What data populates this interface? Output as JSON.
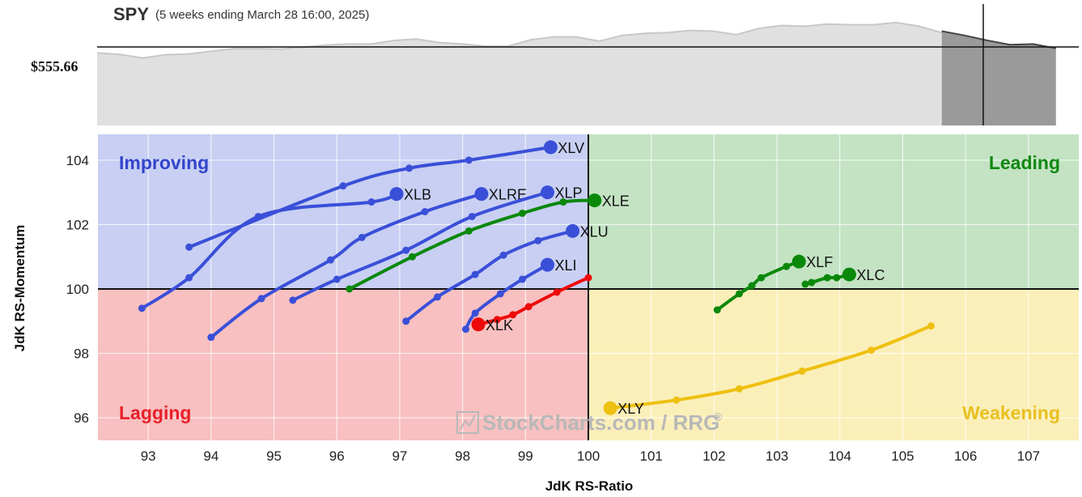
{
  "spy_panel": {
    "symbol": "SPY",
    "period": "(5 weeks ending March 28 16:00, 2025)",
    "price_label": "$555.66",
    "price_values": [
      101.5,
      99.5,
      94.5,
      99,
      100,
      104,
      107.5,
      107.5,
      107,
      109.5,
      112.5,
      114,
      114,
      119,
      121,
      116,
      114,
      111,
      111,
      120,
      124,
      124,
      118,
      126,
      129,
      130,
      133,
      132,
      127,
      136,
      140,
      139,
      142,
      141,
      141,
      144,
      139,
      130
    ],
    "price_colors": {
      "fill": "#e0e0e0",
      "line": "#c8c8c8"
    },
    "forecast_values": [
      132,
      126,
      119,
      113,
      114,
      108
    ],
    "forecast_colors": {
      "fill": "#9a9a9a",
      "line": "#444444"
    },
    "reference_value": 110
  },
  "chart_data": {
    "type": "scatter",
    "xlabel": "JdK RS-Ratio",
    "ylabel": "JdK RS-Momentum",
    "xlim": [
      92.2,
      107.8
    ],
    "ylim": [
      95.3,
      104.8
    ],
    "x_ticks": [
      "93",
      "94",
      "95",
      "96",
      "97",
      "98",
      "99",
      "100",
      "101",
      "102",
      "103",
      "104",
      "105",
      "106",
      "107"
    ],
    "y_ticks": [
      "96",
      "98",
      "100",
      "102",
      "104"
    ],
    "center": [
      100,
      100
    ],
    "quadrants": [
      {
        "name": "Improving",
        "color": "#3344cc",
        "fill": "#c8cff3",
        "position": "top-left"
      },
      {
        "name": "Leading",
        "color": "#118811",
        "fill": "#c3e3c3",
        "position": "top-right"
      },
      {
        "name": "Weakening",
        "color": "#e8c020",
        "fill": "#fbefb9",
        "position": "bottom-right"
      },
      {
        "name": "Lagging",
        "color": "#e8202a",
        "fill": "#f8c0c0",
        "position": "bottom-left"
      }
    ],
    "series": [
      {
        "name": "XLV",
        "color": "#3a4fd8",
        "points": [
          [
            93.65,
            101.3
          ],
          [
            96.1,
            103.2
          ],
          [
            97.15,
            103.75
          ],
          [
            98.1,
            104.0
          ],
          [
            99.4,
            104.4
          ]
        ]
      },
      {
        "name": "XLB",
        "color": "#3a4fd8",
        "points": [
          [
            92.9,
            99.4
          ],
          [
            93.65,
            100.35
          ],
          [
            94.75,
            102.25
          ],
          [
            96.55,
            102.7
          ],
          [
            96.95,
            102.95
          ]
        ]
      },
      {
        "name": "XLRE",
        "color": "#3a4fd8",
        "points": [
          [
            94.0,
            98.5
          ],
          [
            94.8,
            99.7
          ],
          [
            95.9,
            100.9
          ],
          [
            96.4,
            101.6
          ],
          [
            97.4,
            102.4
          ],
          [
            98.3,
            102.95
          ]
        ]
      },
      {
        "name": "XLP",
        "color": "#3a4fd8",
        "points": [
          [
            95.3,
            99.65
          ],
          [
            96.0,
            100.3
          ],
          [
            97.1,
            101.2
          ],
          [
            98.15,
            102.25
          ],
          [
            99.35,
            103.0
          ]
        ]
      },
      {
        "name": "XLU",
        "color": "#3a4fd8",
        "points": [
          [
            97.1,
            99.0
          ],
          [
            97.6,
            99.75
          ],
          [
            98.2,
            100.45
          ],
          [
            98.65,
            101.05
          ],
          [
            99.2,
            101.5
          ],
          [
            99.75,
            101.8
          ]
        ]
      },
      {
        "name": "XLI",
        "color": "#3a4fd8",
        "points": [
          [
            98.05,
            98.75
          ],
          [
            98.2,
            99.25
          ],
          [
            98.6,
            99.85
          ],
          [
            98.95,
            100.3
          ],
          [
            99.35,
            100.75
          ]
        ]
      },
      {
        "name": "XLE",
        "color": "#0a880a",
        "points": [
          [
            96.2,
            100.0
          ],
          [
            97.2,
            101.0
          ],
          [
            98.1,
            101.8
          ],
          [
            98.95,
            102.35
          ],
          [
            99.6,
            102.7
          ],
          [
            100.1,
            102.75
          ]
        ]
      },
      {
        "name": "XLK",
        "color": "#ee0a0a",
        "points": [
          [
            100.0,
            100.35
          ],
          [
            99.5,
            99.9
          ],
          [
            99.05,
            99.45
          ],
          [
            98.8,
            99.2
          ],
          [
            98.55,
            99.05
          ],
          [
            98.25,
            98.9
          ]
        ]
      },
      {
        "name": "XLF",
        "color": "#0a880a",
        "points": [
          [
            102.05,
            99.35
          ],
          [
            102.4,
            99.85
          ],
          [
            102.6,
            100.1
          ],
          [
            102.75,
            100.35
          ],
          [
            103.15,
            100.7
          ],
          [
            103.35,
            100.85
          ]
        ]
      },
      {
        "name": "XLC",
        "color": "#0a880a",
        "points": [
          [
            103.45,
            100.15
          ],
          [
            103.55,
            100.2
          ],
          [
            103.8,
            100.35
          ],
          [
            103.95,
            100.35
          ],
          [
            104.15,
            100.45
          ]
        ]
      },
      {
        "name": "XLY",
        "color": "#eec010",
        "points": [
          [
            105.45,
            98.85
          ],
          [
            104.5,
            98.1
          ],
          [
            103.4,
            97.45
          ],
          [
            102.4,
            96.9
          ],
          [
            101.4,
            96.55
          ],
          [
            100.35,
            96.3
          ]
        ]
      }
    ]
  },
  "watermark": {
    "text": "StockCharts.com / RRG",
    "mark": "®"
  }
}
